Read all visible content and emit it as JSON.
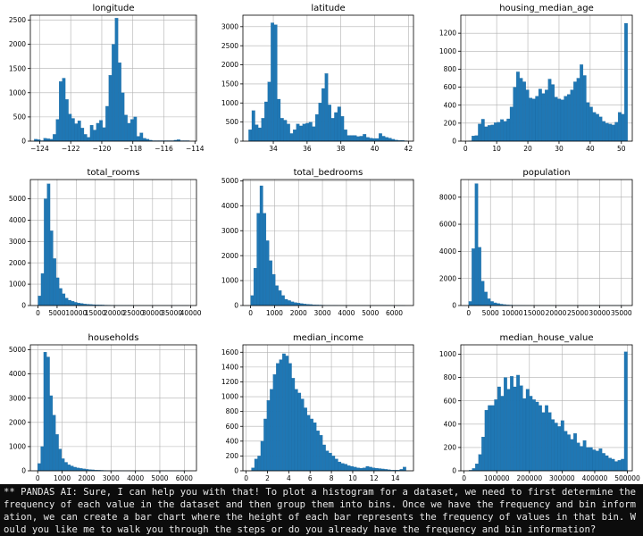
{
  "colors": {
    "bar": "#1f77b4",
    "bar_edge": "#1a649a",
    "grid": "#b0b0b0",
    "axis": "#000000",
    "terminal_bg": "#0c0c0c",
    "terminal_text": "#e8e8e8"
  },
  "chart_data": [
    {
      "type": "bar",
      "title": "longitude",
      "grid": true,
      "xlim": [
        -124.6,
        -113.9
      ],
      "ylim": [
        0,
        2600
      ],
      "xticks": [
        -124,
        -122,
        -120,
        -118,
        -116,
        -114
      ],
      "xtick_labels": [
        "−124",
        "−122",
        "−120",
        "−118",
        "−116",
        "−114"
      ],
      "yticks": [
        0,
        500,
        1000,
        1500,
        2000,
        2500
      ],
      "bins": {
        "start": -124.35,
        "width": 0.2
      },
      "values": [
        40,
        30,
        10,
        60,
        50,
        40,
        140,
        450,
        1230,
        1300,
        860,
        560,
        470,
        360,
        420,
        270,
        140,
        80,
        330,
        230,
        370,
        430,
        280,
        720,
        1360,
        2000,
        2540,
        1620,
        1000,
        540,
        370,
        450,
        500,
        100,
        170,
        60,
        40,
        20,
        10,
        10,
        10,
        10,
        10,
        10,
        10,
        20,
        30,
        10,
        10,
        10
      ]
    },
    {
      "type": "bar",
      "title": "latitude",
      "grid": true,
      "xlim": [
        32.2,
        42.3
      ],
      "ylim": [
        0,
        3300
      ],
      "xticks": [
        34,
        36,
        38,
        40,
        42
      ],
      "xtick_labels": [
        "34",
        "36",
        "38",
        "40",
        "42"
      ],
      "yticks": [
        0,
        500,
        1000,
        1500,
        2000,
        2500,
        3000
      ],
      "bins": {
        "start": 32.54,
        "width": 0.188
      },
      "values": [
        300,
        800,
        430,
        350,
        600,
        1030,
        1550,
        3100,
        3050,
        1100,
        600,
        550,
        450,
        200,
        300,
        450,
        400,
        450,
        470,
        500,
        380,
        700,
        1000,
        1380,
        1770,
        950,
        600,
        750,
        900,
        650,
        300,
        150,
        150,
        150,
        120,
        130,
        180,
        100,
        80,
        70,
        70,
        200,
        130,
        100,
        80,
        50,
        30,
        20,
        20,
        10
      ]
    },
    {
      "type": "bar",
      "title": "housing_median_age",
      "grid": true,
      "xlim": [
        -1.5,
        53.5
      ],
      "ylim": [
        0,
        1400
      ],
      "xticks": [
        0,
        10,
        20,
        30,
        40,
        50
      ],
      "xtick_labels": [
        "0",
        "10",
        "20",
        "30",
        "40",
        "50"
      ],
      "yticks": [
        0,
        200,
        400,
        600,
        800,
        1000,
        1200
      ],
      "bins": {
        "start": 1,
        "width": 1.02
      },
      "values": [
        4,
        58,
        62,
        191,
        244,
        160,
        175,
        180,
        205,
        210,
        240,
        220,
        248,
        380,
        600,
        770,
        700,
        660,
        570,
        480,
        470,
        500,
        580,
        530,
        570,
        690,
        630,
        490,
        470,
        460,
        500,
        520,
        570,
        660,
        700,
        850,
        730,
        430,
        380,
        320,
        300,
        270,
        220,
        200,
        190,
        180,
        210,
        320,
        300,
        1310
      ]
    },
    {
      "type": "bar",
      "title": "total_rooms",
      "grid": true,
      "xlim": [
        -2000,
        41500
      ],
      "ylim": [
        0,
        5900
      ],
      "xticks": [
        0,
        5000,
        10000,
        15000,
        20000,
        25000,
        30000,
        35000,
        40000
      ],
      "xtick_labels": [
        "0",
        "5000",
        "10000",
        "15000",
        "20000",
        "25000",
        "30000",
        "35000",
        "40000"
      ],
      "yticks": [
        0,
        1000,
        2000,
        3000,
        4000,
        5000
      ],
      "bins": {
        "start": 0,
        "width": 790
      },
      "values": [
        450,
        1500,
        5000,
        5700,
        3500,
        2200,
        1300,
        800,
        550,
        350,
        250,
        200,
        150,
        120,
        100,
        70,
        60,
        50,
        40,
        35,
        30,
        25,
        20,
        18,
        15,
        12,
        10,
        9,
        8,
        7,
        6,
        5,
        4,
        3,
        3,
        2,
        2,
        2,
        1,
        1,
        1,
        1,
        1,
        1,
        1,
        1,
        1,
        1,
        1,
        1
      ]
    },
    {
      "type": "bar",
      "title": "total_bedrooms",
      "grid": true,
      "xlim": [
        -320,
        6800
      ],
      "ylim": [
        0,
        5050
      ],
      "xticks": [
        0,
        1000,
        2000,
        3000,
        4000,
        5000,
        6000
      ],
      "xtick_labels": [
        "0",
        "1000",
        "2000",
        "3000",
        "4000",
        "5000",
        "6000"
      ],
      "yticks": [
        0,
        1000,
        2000,
        3000,
        4000,
        5000
      ],
      "bins": {
        "start": 1,
        "width": 129
      },
      "values": [
        400,
        1500,
        3700,
        4800,
        3700,
        2600,
        1800,
        1250,
        800,
        600,
        400,
        250,
        200,
        150,
        120,
        100,
        80,
        60,
        50,
        40,
        30,
        25,
        20,
        15,
        10,
        8,
        6,
        5,
        4,
        3,
        2,
        2,
        1,
        1,
        1,
        1,
        1,
        1,
        1,
        1,
        1,
        1,
        1,
        1,
        1,
        1,
        1,
        1,
        1,
        1
      ]
    },
    {
      "type": "bar",
      "title": "population",
      "grid": true,
      "xlim": [
        -1800,
        37500
      ],
      "ylim": [
        0,
        9300
      ],
      "xticks": [
        0,
        5000,
        10000,
        15000,
        20000,
        25000,
        30000,
        35000
      ],
      "xtick_labels": [
        "0",
        "5000",
        "10000",
        "15000",
        "20000",
        "25000",
        "30000",
        "35000"
      ],
      "yticks": [
        0,
        2000,
        4000,
        6000,
        8000
      ],
      "bins": {
        "start": 3,
        "width": 714
      },
      "values": [
        300,
        4200,
        9000,
        4300,
        1800,
        1000,
        500,
        300,
        200,
        150,
        100,
        70,
        50,
        35,
        25,
        20,
        15,
        10,
        8,
        6,
        5,
        4,
        3,
        3,
        2,
        2,
        2,
        1,
        1,
        1,
        1,
        1,
        1,
        1,
        1,
        1,
        1,
        1,
        1,
        1,
        1,
        1,
        1,
        1,
        1,
        1,
        1,
        1,
        1,
        1
      ]
    },
    {
      "type": "bar",
      "title": "households",
      "grid": true,
      "xlim": [
        -300,
        6500
      ],
      "ylim": [
        0,
        5200
      ],
      "xticks": [
        0,
        1000,
        2000,
        3000,
        4000,
        5000,
        6000
      ],
      "xtick_labels": [
        "0",
        "1000",
        "2000",
        "3000",
        "4000",
        "5000",
        "6000"
      ],
      "yticks": [
        0,
        1000,
        2000,
        3000,
        4000,
        5000
      ],
      "bins": {
        "start": 1,
        "width": 122
      },
      "values": [
        300,
        1000,
        4900,
        4700,
        3100,
        2300,
        1500,
        900,
        500,
        350,
        250,
        200,
        150,
        120,
        100,
        80,
        60,
        50,
        40,
        30,
        25,
        20,
        15,
        10,
        8,
        6,
        5,
        4,
        3,
        2,
        2,
        1,
        1,
        1,
        1,
        1,
        1,
        1,
        1,
        1,
        1,
        1,
        1,
        1,
        1,
        1,
        1,
        1,
        1,
        1
      ]
    },
    {
      "type": "bar",
      "title": "median_income",
      "grid": true,
      "xlim": [
        -0.3,
        15.7
      ],
      "ylim": [
        0,
        1700
      ],
      "xticks": [
        0,
        2,
        4,
        6,
        8,
        10,
        12,
        14
      ],
      "xtick_labels": [
        "0",
        "2",
        "4",
        "6",
        "8",
        "10",
        "12",
        "14"
      ],
      "yticks": [
        0,
        200,
        400,
        600,
        800,
        1000,
        1200,
        1400,
        1600
      ],
      "bins": {
        "start": 0.5,
        "width": 0.29
      },
      "values": [
        40,
        160,
        200,
        400,
        700,
        950,
        1100,
        1300,
        1450,
        1500,
        1580,
        1550,
        1450,
        1250,
        1100,
        1050,
        970,
        850,
        750,
        700,
        650,
        540,
        480,
        350,
        270,
        240,
        200,
        160,
        120,
        100,
        90,
        70,
        60,
        50,
        40,
        35,
        40,
        60,
        50,
        40,
        35,
        30,
        25,
        20,
        15,
        10,
        10,
        10,
        20,
        50
      ]
    },
    {
      "type": "bar",
      "title": "median_house_value",
      "grid": true,
      "xlim": [
        -10000,
        515000
      ],
      "ylim": [
        0,
        1080
      ],
      "xticks": [
        0,
        100000,
        200000,
        300000,
        400000,
        500000
      ],
      "xtick_labels": [
        "0",
        "100000",
        "200000",
        "300000",
        "400000",
        "500000"
      ],
      "yticks": [
        0,
        200,
        400,
        600,
        800,
        1000
      ],
      "bins": {
        "start": 15000,
        "width": 9700
      },
      "values": [
        5,
        20,
        60,
        140,
        290,
        520,
        560,
        560,
        610,
        720,
        640,
        800,
        700,
        810,
        720,
        820,
        730,
        620,
        700,
        640,
        610,
        590,
        560,
        500,
        560,
        500,
        440,
        410,
        380,
        430,
        340,
        310,
        270,
        320,
        240,
        210,
        260,
        200,
        200,
        180,
        170,
        190,
        150,
        130,
        110,
        100,
        80,
        90,
        100,
        1020
      ]
    }
  ],
  "terminal": {
    "text": "** PANDAS AI: Sure, I can help you with that! To plot a histogram for a dataset, we need to first determine the frequency of each value in the dataset and then group them into bins. Once we have the frequency and bin information, we can create a bar chart where the height of each bar represents the frequency of values in that bin. Would you like me to walk you through the steps or do you already have the frequency and bin information?"
  }
}
